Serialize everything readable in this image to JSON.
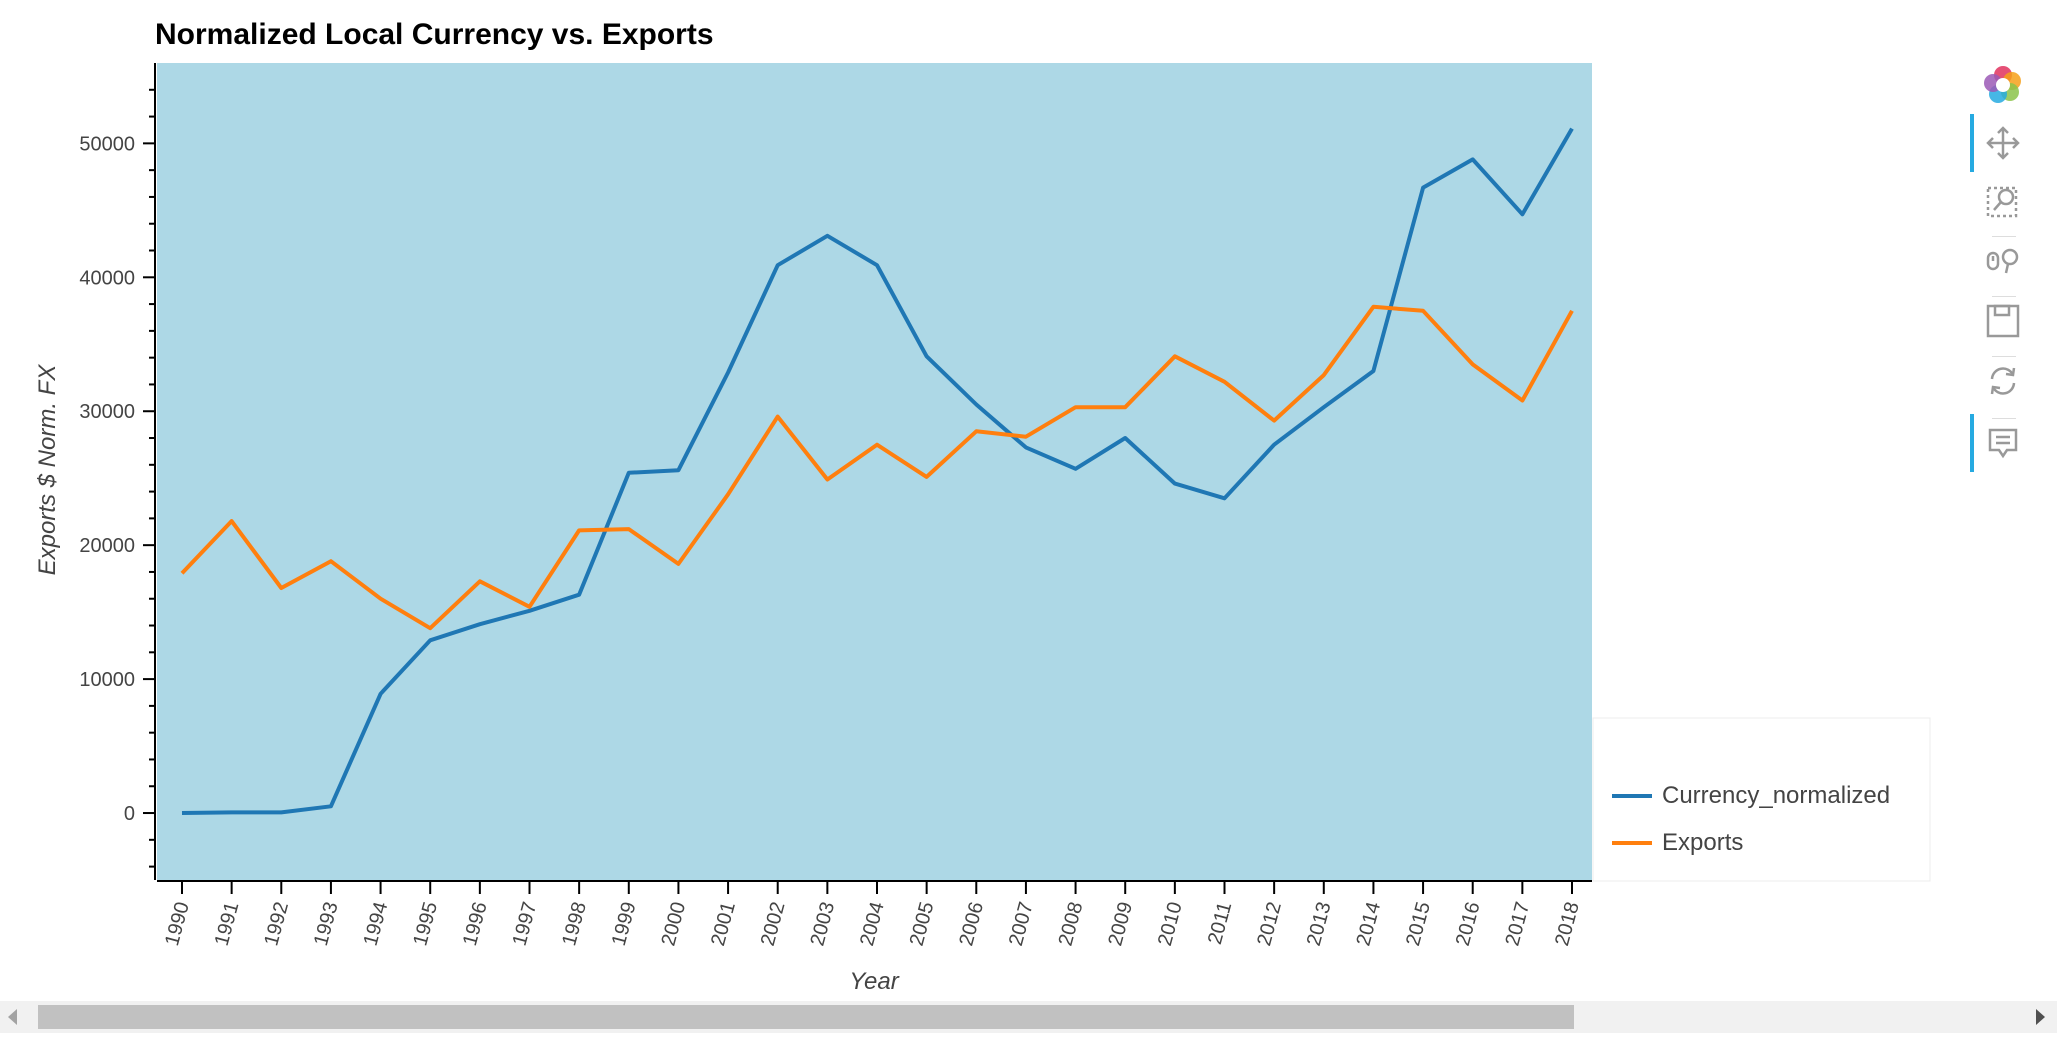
{
  "chart_data": {
    "type": "line",
    "title": "Normalized Local Currency vs. Exports",
    "xlabel": "Year",
    "ylabel": "Exports $ Norm. FX",
    "ylim": [
      -5000,
      56000
    ],
    "yticks": [
      0,
      10000,
      20000,
      30000,
      40000,
      50000
    ],
    "ytick_labels": [
      "0",
      "10000",
      "20000",
      "30000",
      "40000",
      "50000"
    ],
    "x": [
      "1990",
      "1991",
      "1992",
      "1993",
      "1994",
      "1995",
      "1996",
      "1997",
      "1998",
      "1999",
      "2000",
      "2001",
      "2002",
      "2003",
      "2004",
      "2005",
      "2006",
      "2007",
      "2008",
      "2009",
      "2010",
      "2011",
      "2012",
      "2013",
      "2014",
      "2015",
      "2016",
      "2017",
      "2018"
    ],
    "series": [
      {
        "name": "Currency_normalized",
        "color": "#1f77b4",
        "values": [
          0,
          50,
          50,
          500,
          8900,
          12900,
          14100,
          15100,
          16300,
          25400,
          25600,
          32900,
          40900,
          43100,
          40900,
          34100,
          30500,
          27300,
          25700,
          28000,
          24600,
          23500,
          27500,
          30300,
          33000,
          46700,
          48800,
          44700,
          51100
        ]
      },
      {
        "name": "Exports",
        "color": "#ff7f0e",
        "values": [
          17900,
          21800,
          16800,
          18800,
          16000,
          13800,
          17300,
          15400,
          21100,
          21200,
          18600,
          23800,
          29600,
          24900,
          27500,
          25100,
          28500,
          28100,
          30300,
          30300,
          34100,
          32200,
          29300,
          32700,
          37800,
          37500,
          33500,
          30800,
          37500
        ]
      }
    ],
    "legend_position": "bottom-right, outside plot",
    "background_color": "#add8e6",
    "grid": false
  },
  "toolbar": {
    "tools": [
      "bokeh-logo-icon",
      "pan-icon",
      "box-zoom-icon",
      "wheel-zoom-icon",
      "save-icon",
      "reset-icon",
      "hover-icon"
    ]
  }
}
